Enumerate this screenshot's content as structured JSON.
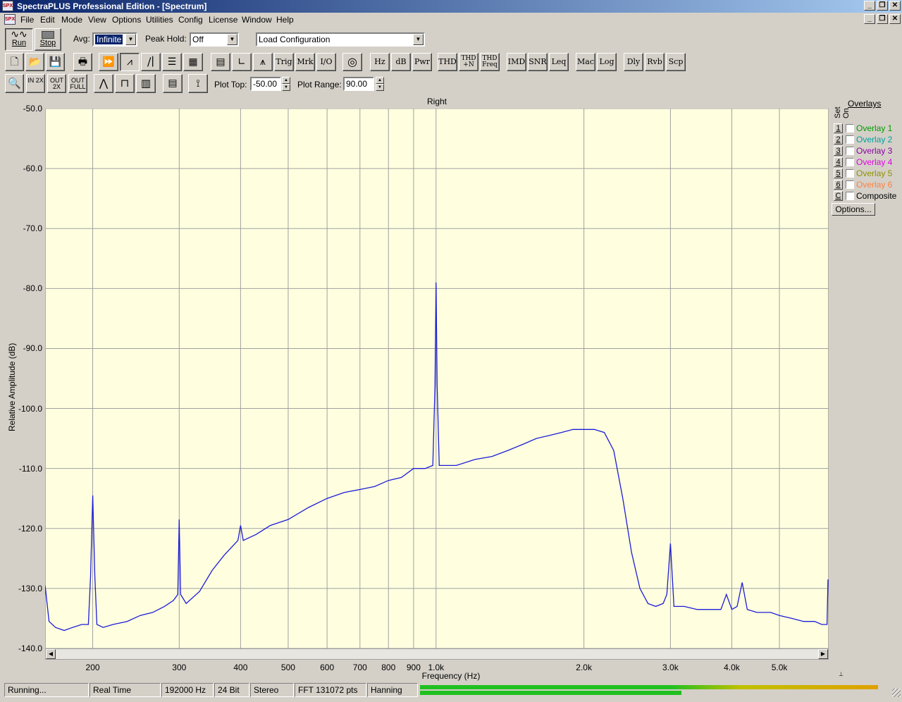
{
  "window": {
    "title": "SpectraPLUS Professional Edition - [Spectrum]",
    "app_icon_text": "SPX"
  },
  "menu": [
    "File",
    "Edit",
    "Mode",
    "View",
    "Options",
    "Utilities",
    "Config",
    "License",
    "Window",
    "Help"
  ],
  "toolbar1": {
    "run_label": "Run",
    "stop_label": "Stop",
    "avg_label": "Avg:",
    "avg_value": "Infinite",
    "peak_hold_label": "Peak Hold:",
    "peak_hold_value": "Off",
    "config_value": "Load Configuration"
  },
  "toolbar2": {
    "buttons": [
      "Trig",
      "Mrk",
      "I/O",
      "Hz",
      "dB",
      "Pwr",
      "THD",
      "THD +N",
      "THD Freq",
      "IMD",
      "SNR",
      "Leq",
      "Mac",
      "Log",
      "Dly",
      "Rvb",
      "Scp"
    ]
  },
  "toolbar3": {
    "zoom_in": "IN 2X",
    "zoom_out": "OUT 2X",
    "zoom_full": "OUT FULL",
    "plot_top_label": "Plot Top:",
    "plot_top_value": "-50.00",
    "plot_range_label": "Plot Range:",
    "plot_range_value": "90.00"
  },
  "graph": {
    "title": "Right",
    "ylabel": "Relative Amplitude (dB)",
    "xlabel": "Frequency (Hz)"
  },
  "chart_data": {
    "type": "line",
    "title": "Right",
    "xlabel": "Frequency (Hz)",
    "ylabel": "Relative Amplitude (dB)",
    "x_scale": "log",
    "xlim": [
      160,
      6300
    ],
    "ylim": [
      -140,
      -50
    ],
    "grid": true,
    "y_ticks": [
      "-50.0",
      "-60.0",
      "-70.0",
      "-80.0",
      "-90.0",
      "-100.0",
      "-110.0",
      "-120.0",
      "-130.0",
      "-140.0"
    ],
    "x_ticks": [
      {
        "value": 200,
        "label": "200"
      },
      {
        "value": 300,
        "label": "300"
      },
      {
        "value": 400,
        "label": "400"
      },
      {
        "value": 500,
        "label": "500"
      },
      {
        "value": 600,
        "label": "600"
      },
      {
        "value": 700,
        "label": "700"
      },
      {
        "value": 800,
        "label": "800"
      },
      {
        "value": 900,
        "label": "900"
      },
      {
        "value": 1000,
        "label": "1.0k"
      },
      {
        "value": 2000,
        "label": "2.0k"
      },
      {
        "value": 3000,
        "label": "3.0k"
      },
      {
        "value": 4000,
        "label": "4.0k"
      },
      {
        "value": 5000,
        "label": "5.0k"
      }
    ],
    "series": [
      {
        "color": "#1c1cd8",
        "points": [
          [
            160,
            -129.5
          ],
          [
            163,
            -135.5
          ],
          [
            168,
            -136.5
          ],
          [
            175,
            -137
          ],
          [
            182,
            -136.5
          ],
          [
            190,
            -136
          ],
          [
            196,
            -136
          ],
          [
            198,
            -128
          ],
          [
            200,
            -114.5
          ],
          [
            202,
            -128
          ],
          [
            204,
            -136
          ],
          [
            210,
            -136.5
          ],
          [
            220,
            -136
          ],
          [
            235,
            -135.5
          ],
          [
            250,
            -134.5
          ],
          [
            265,
            -134
          ],
          [
            280,
            -133
          ],
          [
            292,
            -132
          ],
          [
            298,
            -131
          ],
          [
            300,
            -118.5
          ],
          [
            302,
            -131
          ],
          [
            310,
            -132.5
          ],
          [
            330,
            -130.5
          ],
          [
            350,
            -127
          ],
          [
            370,
            -124.5
          ],
          [
            395,
            -122
          ],
          [
            400,
            -119.5
          ],
          [
            405,
            -122
          ],
          [
            430,
            -121
          ],
          [
            460,
            -119.5
          ],
          [
            500,
            -118.5
          ],
          [
            550,
            -116.5
          ],
          [
            600,
            -115
          ],
          [
            650,
            -114
          ],
          [
            700,
            -113.5
          ],
          [
            750,
            -113
          ],
          [
            800,
            -112
          ],
          [
            850,
            -111.5
          ],
          [
            900,
            -110
          ],
          [
            950,
            -110
          ],
          [
            985,
            -109.5
          ],
          [
            995,
            -96
          ],
          [
            1000,
            -79
          ],
          [
            1005,
            -96
          ],
          [
            1015,
            -109.5
          ],
          [
            1100,
            -109.5
          ],
          [
            1200,
            -108.5
          ],
          [
            1300,
            -108
          ],
          [
            1400,
            -107
          ],
          [
            1500,
            -106
          ],
          [
            1600,
            -105
          ],
          [
            1700,
            -104.5
          ],
          [
            1800,
            -104
          ],
          [
            1900,
            -103.5
          ],
          [
            2000,
            -103.5
          ],
          [
            2100,
            -103.5
          ],
          [
            2200,
            -104
          ],
          [
            2300,
            -107
          ],
          [
            2400,
            -115
          ],
          [
            2500,
            -124
          ],
          [
            2600,
            -130
          ],
          [
            2700,
            -132.5
          ],
          [
            2800,
            -133
          ],
          [
            2900,
            -132.5
          ],
          [
            2950,
            -131
          ],
          [
            3000,
            -122.5
          ],
          [
            3050,
            -133
          ],
          [
            3200,
            -133
          ],
          [
            3400,
            -133.5
          ],
          [
            3600,
            -133.5
          ],
          [
            3800,
            -133.5
          ],
          [
            3900,
            -131
          ],
          [
            4000,
            -133.5
          ],
          [
            4100,
            -133
          ],
          [
            4200,
            -129
          ],
          [
            4300,
            -133.5
          ],
          [
            4500,
            -134
          ],
          [
            4800,
            -134
          ],
          [
            5000,
            -134.5
          ],
          [
            5300,
            -135
          ],
          [
            5600,
            -135.5
          ],
          [
            5900,
            -135.5
          ],
          [
            6100,
            -136
          ],
          [
            6250,
            -136
          ],
          [
            6280,
            -128.5
          ]
        ]
      }
    ]
  },
  "overlays": {
    "header": "Overlays",
    "col_set": "Set",
    "col_on": "On",
    "items": [
      {
        "num": "1",
        "name": "Overlay 1",
        "color": "#009a00"
      },
      {
        "num": "2",
        "name": "Overlay 2",
        "color": "#00a0a0"
      },
      {
        "num": "3",
        "name": "Overlay 3",
        "color": "#8a00a0"
      },
      {
        "num": "4",
        "name": "Overlay 4",
        "color": "#e000e0"
      },
      {
        "num": "5",
        "name": "Overlay 5",
        "color": "#909000"
      },
      {
        "num": "6",
        "name": "Overlay 6",
        "color": "#ff8040"
      },
      {
        "num": "C",
        "name": "Composite",
        "color": "#000000"
      }
    ],
    "options_label": "Options..."
  },
  "status": {
    "state": "Running...",
    "mode": "Real Time",
    "rate": "192000 Hz",
    "bits": "24 Bit",
    "channels": "Stereo",
    "fft": "FFT 131072 pts",
    "window": "Hanning",
    "level_top": 1.0,
    "level_bottom": 0.57
  },
  "colors": {
    "plot_bg": "#ffffe0",
    "trace": "#1c1cd8",
    "grid": "#a0a0a0"
  }
}
